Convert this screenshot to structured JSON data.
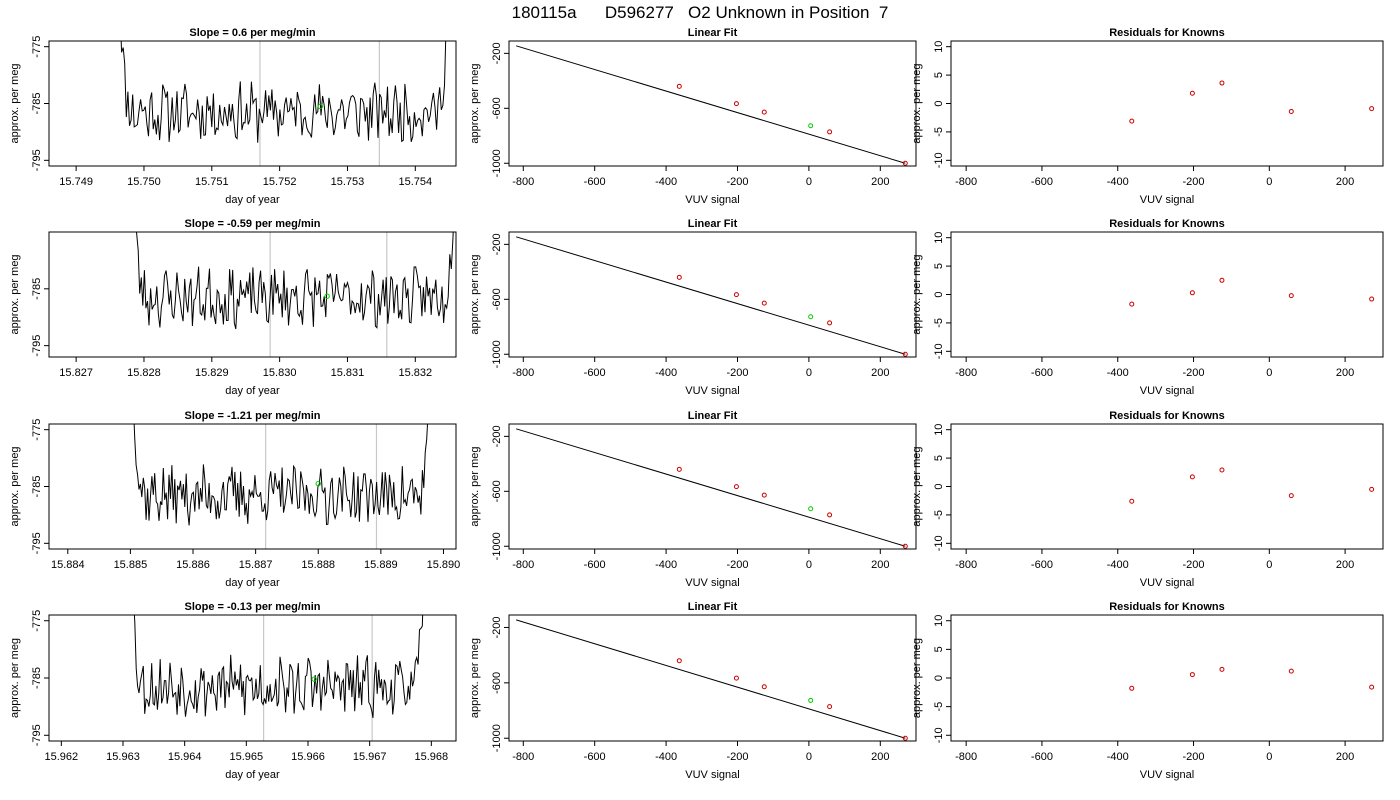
{
  "page": {
    "title": "180115a      D596277   O2 Unknown in Position  7"
  },
  "chart_data": [
    {
      "type": "line",
      "panel": "time-series",
      "title": "Slope =  0.6  per meg/min",
      "xlabel": "day of year",
      "ylabel": "approx. per meg",
      "xlim": [
        15.7486,
        15.7546
      ],
      "ylim": [
        -796,
        -774
      ],
      "xticks": [
        "15.749",
        "15.750",
        "15.751",
        "15.752",
        "15.753",
        "15.754"
      ],
      "yticks": [
        "-775",
        "-785",
        "-795"
      ],
      "t_start": 15.7496,
      "t_end": 15.7545,
      "seed": 11,
      "vlines": [
        15.75171,
        15.75347
      ],
      "marker": {
        "x": 15.7526,
        "y": -785.5,
        "color": "#00cc00"
      }
    },
    {
      "type": "line",
      "panel": "linear-fit",
      "title": "Linear Fit",
      "xlabel": "VUV signal",
      "ylabel": "approx. per meg",
      "xlim": [
        -840,
        300
      ],
      "ylim": [
        -1020,
        -110
      ],
      "xticks": [
        "-800",
        "-600",
        "-400",
        "-200",
        "0",
        "200"
      ],
      "yticks": [
        "-200",
        "-600",
        "-1000"
      ],
      "fit_line": {
        "x": [
          -820,
          270
        ],
        "y": [
          -145,
          -1000
        ]
      },
      "known_points": [
        {
          "x": -363,
          "y": -440
        },
        {
          "x": -203,
          "y": -566
        },
        {
          "x": -125,
          "y": -628
        },
        {
          "x": 58,
          "y": -772
        },
        {
          "x": 270,
          "y": -1000
        }
      ],
      "unknown_point": {
        "x": 5,
        "y": -727
      },
      "known_color": "#cc0000",
      "unknown_color": "#00cc00"
    },
    {
      "type": "scatter",
      "panel": "residuals",
      "title": "Residuals for Knowns",
      "xlabel": "VUV signal",
      "ylabel": "approx. per meg",
      "xlim": [
        -840,
        300
      ],
      "ylim": [
        -11,
        11
      ],
      "xticks": [
        "-800",
        "-600",
        "-400",
        "-200",
        "0",
        "200"
      ],
      "yticks": [
        "10",
        "5",
        "0",
        "-5",
        "-10"
      ],
      "points": [
        {
          "x": -363,
          "y": -3.1
        },
        {
          "x": -203,
          "y": 1.8
        },
        {
          "x": -125,
          "y": 3.6
        },
        {
          "x": 58,
          "y": -1.4
        },
        {
          "x": 270,
          "y": -0.9
        }
      ],
      "color": "#cc0000"
    },
    {
      "type": "line",
      "panel": "time-series",
      "title": "Slope =  -0.59  per meg/min",
      "xlabel": "day of year",
      "ylabel": "approx. per meg",
      "xlim": [
        15.8266,
        15.8326
      ],
      "ylim": [
        -797,
        -775
      ],
      "xticks": [
        "15.827",
        "15.828",
        "15.829",
        "15.830",
        "15.831",
        "15.832"
      ],
      "yticks": [
        "-785",
        "-795"
      ],
      "t_start": 15.8278,
      "t_end": 15.8326,
      "seed": 23,
      "vlines": [
        15.82986,
        15.83158
      ],
      "marker": {
        "x": 15.8307,
        "y": -786.3,
        "color": "#00cc00"
      }
    },
    {
      "type": "line",
      "panel": "linear-fit",
      "title": "Linear Fit",
      "xlabel": "VUV signal",
      "ylabel": "approx. per meg",
      "xlim": [
        -840,
        300
      ],
      "ylim": [
        -1020,
        -110
      ],
      "xticks": [
        "-800",
        "-600",
        "-400",
        "-200",
        "0",
        "200"
      ],
      "yticks": [
        "-200",
        "-600",
        "-1000"
      ],
      "fit_line": {
        "x": [
          -820,
          270
        ],
        "y": [
          -145,
          -1000
        ]
      },
      "known_points": [
        {
          "x": -363,
          "y": -440
        },
        {
          "x": -203,
          "y": -566
        },
        {
          "x": -125,
          "y": -628
        },
        {
          "x": 58,
          "y": -772
        },
        {
          "x": 270,
          "y": -1000
        }
      ],
      "unknown_point": {
        "x": 5,
        "y": -727
      },
      "known_color": "#cc0000",
      "unknown_color": "#00cc00"
    },
    {
      "type": "scatter",
      "panel": "residuals",
      "title": "Residuals for Knowns",
      "xlabel": "VUV signal",
      "ylabel": "approx. per meg",
      "xlim": [
        -840,
        300
      ],
      "ylim": [
        -11,
        11
      ],
      "xticks": [
        "-800",
        "-600",
        "-400",
        "-200",
        "0",
        "200"
      ],
      "yticks": [
        "10",
        "5",
        "0",
        "-5",
        "-10"
      ],
      "points": [
        {
          "x": -363,
          "y": -1.7
        },
        {
          "x": -203,
          "y": 0.3
        },
        {
          "x": -125,
          "y": 2.5
        },
        {
          "x": 58,
          "y": -0.2
        },
        {
          "x": 270,
          "y": -0.8
        }
      ],
      "color": "#cc0000"
    },
    {
      "type": "line",
      "panel": "time-series",
      "title": "Slope =  -1.21  per meg/min",
      "xlabel": "day of year",
      "ylabel": "approx. per meg",
      "xlim": [
        15.8837,
        15.8902
      ],
      "ylim": [
        -796,
        -774
      ],
      "xticks": [
        "15.884",
        "15.885",
        "15.886",
        "15.887",
        "15.888",
        "15.889",
        "15.890"
      ],
      "yticks": [
        "-775",
        "-785",
        "-795"
      ],
      "t_start": 15.885,
      "t_end": 15.8898,
      "seed": 37,
      "vlines": [
        15.88716,
        15.88893
      ],
      "marker": {
        "x": 15.888,
        "y": -784.5,
        "color": "#00cc00"
      }
    },
    {
      "type": "line",
      "panel": "linear-fit",
      "title": "Linear Fit",
      "xlabel": "VUV signal",
      "ylabel": "approx. per meg",
      "xlim": [
        -840,
        300
      ],
      "ylim": [
        -1020,
        -110
      ],
      "xticks": [
        "-800",
        "-600",
        "-400",
        "-200",
        "0",
        "200"
      ],
      "yticks": [
        "-200",
        "-600",
        "-1000"
      ],
      "fit_line": {
        "x": [
          -820,
          270
        ],
        "y": [
          -145,
          -1000
        ]
      },
      "known_points": [
        {
          "x": -363,
          "y": -440
        },
        {
          "x": -203,
          "y": -566
        },
        {
          "x": -125,
          "y": -628
        },
        {
          "x": 58,
          "y": -772
        },
        {
          "x": 270,
          "y": -1000
        }
      ],
      "unknown_point": {
        "x": 5,
        "y": -727
      },
      "known_color": "#cc0000",
      "unknown_color": "#00cc00"
    },
    {
      "type": "scatter",
      "panel": "residuals",
      "title": "Residuals for Knowns",
      "xlabel": "VUV signal",
      "ylabel": "approx. per meg",
      "xlim": [
        -840,
        300
      ],
      "ylim": [
        -11,
        11
      ],
      "xticks": [
        "-800",
        "-600",
        "-400",
        "-200",
        "0",
        "200"
      ],
      "yticks": [
        "10",
        "5",
        "0",
        "-5",
        "-10"
      ],
      "points": [
        {
          "x": -363,
          "y": -2.6
        },
        {
          "x": -203,
          "y": 1.7
        },
        {
          "x": -125,
          "y": 2.9
        },
        {
          "x": 58,
          "y": -1.6
        },
        {
          "x": 270,
          "y": -0.5
        }
      ],
      "color": "#cc0000"
    },
    {
      "type": "line",
      "panel": "time-series",
      "title": "Slope =  -0.13  per meg/min",
      "xlabel": "day of year",
      "ylabel": "approx. per meg",
      "xlim": [
        15.9618,
        15.9684
      ],
      "ylim": [
        -796,
        -774
      ],
      "xticks": [
        "15.962",
        "15.963",
        "15.964",
        "15.965",
        "15.966",
        "15.967",
        "15.968"
      ],
      "yticks": [
        "-775",
        "-785",
        "-795"
      ],
      "t_start": 15.9631,
      "t_end": 15.9679,
      "seed": 53,
      "vlines": [
        15.96528,
        15.96704
      ],
      "marker": {
        "x": 15.9661,
        "y": -785.2,
        "color": "#00cc00"
      }
    },
    {
      "type": "line",
      "panel": "linear-fit",
      "title": "Linear Fit",
      "xlabel": "VUV signal",
      "ylabel": "approx. per meg",
      "xlim": [
        -840,
        300
      ],
      "ylim": [
        -1020,
        -110
      ],
      "xticks": [
        "-800",
        "-600",
        "-400",
        "-200",
        "0",
        "200"
      ],
      "yticks": [
        "-200",
        "-600",
        "-1000"
      ],
      "fit_line": {
        "x": [
          -820,
          270
        ],
        "y": [
          -145,
          -1000
        ]
      },
      "known_points": [
        {
          "x": -363,
          "y": -440
        },
        {
          "x": -203,
          "y": -566
        },
        {
          "x": -125,
          "y": -628
        },
        {
          "x": 58,
          "y": -772
        },
        {
          "x": 270,
          "y": -1000
        }
      ],
      "unknown_point": {
        "x": 5,
        "y": -727
      },
      "known_color": "#cc0000",
      "unknown_color": "#00cc00"
    },
    {
      "type": "scatter",
      "panel": "residuals",
      "title": "Residuals for Knowns",
      "xlabel": "VUV signal",
      "ylabel": "approx. per meg",
      "xlim": [
        -840,
        300
      ],
      "ylim": [
        -11,
        11
      ],
      "xticks": [
        "-800",
        "-600",
        "-400",
        "-200",
        "0",
        "200"
      ],
      "yticks": [
        "10",
        "5",
        "0",
        "-5",
        "-10"
      ],
      "points": [
        {
          "x": -363,
          "y": -1.8
        },
        {
          "x": -203,
          "y": 0.6
        },
        {
          "x": -125,
          "y": 1.5
        },
        {
          "x": 58,
          "y": 1.2
        },
        {
          "x": 270,
          "y": -1.6
        }
      ],
      "color": "#cc0000"
    }
  ]
}
